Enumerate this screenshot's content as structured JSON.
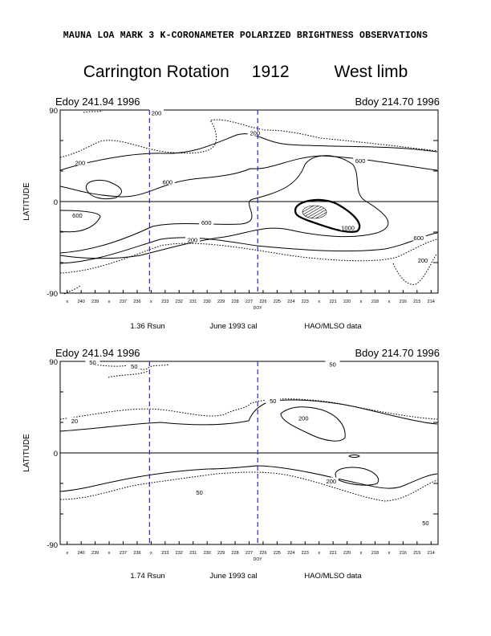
{
  "figure": {
    "supertitle": "MAUNA LOA MARK 3 K-CORONAMETER POLARIZED BRIGHTNESS OBSERVATIONS",
    "title_left": "Carrington Rotation",
    "title_rotation": "1912",
    "title_limb": "West limb",
    "colors": {
      "ink": "#000000",
      "marker_lines": "#1f2fbf"
    }
  },
  "chart_data": [
    {
      "type": "contour",
      "corner_left": "Edoy 241.94 1996",
      "corner_right": "Bdoy 214.70 1996",
      "ylabel": "LATITUDE",
      "yticks": [
        "90",
        "0",
        "-90"
      ],
      "ylim": [
        -90,
        90
      ],
      "xlim": [
        241.94,
        214.7
      ],
      "xaxis_title": "DOY",
      "xticks": [
        "x",
        "240",
        "239",
        "x",
        "237",
        "236",
        "x",
        "233",
        "232",
        "231",
        "230",
        "229",
        "228",
        "227",
        "226",
        "225",
        "224",
        "223",
        "x",
        "221",
        "220",
        "x",
        "218",
        "x",
        "216",
        "215",
        "214"
      ],
      "footer": [
        "1.36 Rsun",
        "June 1993 cal",
        "HAO/MLSO data"
      ],
      "marker_lines_doy": [
        235.5,
        227.7
      ],
      "contour_labels": [
        {
          "text": "200",
          "doy": 235.0,
          "lat": 87
        },
        {
          "text": "200",
          "doy": 240.5,
          "lat": 38
        },
        {
          "text": "200",
          "doy": 227.9,
          "lat": 67
        },
        {
          "text": "200",
          "doy": 232.4,
          "lat": -38
        },
        {
          "text": "200",
          "doy": 215.8,
          "lat": -58
        },
        {
          "text": "600",
          "doy": 234.2,
          "lat": 19
        },
        {
          "text": "600",
          "doy": 240.7,
          "lat": -14
        },
        {
          "text": "600",
          "doy": 231.4,
          "lat": -21
        },
        {
          "text": "600",
          "doy": 220.3,
          "lat": 40
        },
        {
          "text": "600",
          "doy": 216.1,
          "lat": -36
        },
        {
          "text": "1000",
          "doy": 221.2,
          "lat": -26
        }
      ]
    },
    {
      "type": "contour",
      "corner_left": "Edoy 241.94 1996",
      "corner_right": "Bdoy 214.70 1996",
      "ylabel": "LATITUDE",
      "yticks": [
        "90",
        "0",
        "-90"
      ],
      "ylim": [
        -90,
        90
      ],
      "xlim": [
        241.94,
        214.7
      ],
      "xaxis_title": "DOY",
      "xticks": [
        "x",
        "240",
        "239",
        "x",
        "237",
        "236",
        "x",
        "233",
        "232",
        "231",
        "230",
        "229",
        "228",
        "227",
        "226",
        "225",
        "224",
        "223",
        "x",
        "221",
        "220",
        "x",
        "218",
        "x",
        "216",
        "215",
        "214"
      ],
      "footer": [
        "1.74 Rsun",
        "June 1993 cal",
        "HAO/MLSO data"
      ],
      "marker_lines_doy": [
        235.5,
        227.7
      ],
      "contour_labels": [
        {
          "text": "50",
          "doy": 239.6,
          "lat": 89
        },
        {
          "text": "50",
          "doy": 236.6,
          "lat": 85
        },
        {
          "text": "50",
          "doy": 222.3,
          "lat": 87
        },
        {
          "text": "50",
          "doy": 226.6,
          "lat": 51
        },
        {
          "text": "50",
          "doy": 231.9,
          "lat": -39
        },
        {
          "text": "50",
          "doy": 215.6,
          "lat": -69
        },
        {
          "text": "20",
          "doy": 240.9,
          "lat": 31
        },
        {
          "text": "200",
          "doy": 224.4,
          "lat": 34
        },
        {
          "text": "200",
          "doy": 222.4,
          "lat": -28
        }
      ]
    }
  ]
}
